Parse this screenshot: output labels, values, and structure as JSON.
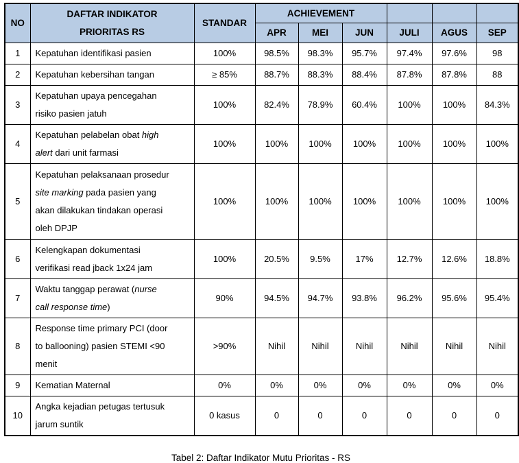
{
  "colors": {
    "header_bg": "#b8cce4",
    "border": "#000000"
  },
  "caption": "Tabel 2: Daftar Indikator Mutu Prioritas - RS",
  "table": {
    "header": {
      "no": "NO",
      "indicator_line1": "DAFTAR INDIKATOR",
      "indicator_line2": "PRIORITAS RS",
      "standar": "STANDAR",
      "achievement": "ACHIEVEMENT",
      "months": [
        "APR",
        "MEI",
        "JUN",
        "JULI",
        "AGUS",
        "SEP"
      ]
    },
    "rows": [
      {
        "no": "1",
        "indicator": [
          {
            "text": "Kepatuhan identifikasi pasien"
          }
        ],
        "standar": "100%",
        "values": [
          "98.5%",
          "98.3%",
          "95.7%",
          "97.4%",
          "97.6%",
          "98"
        ]
      },
      {
        "no": "2",
        "indicator": [
          {
            "text": "Kepatuhan kebersihan tangan"
          }
        ],
        "standar": "≥ 85%",
        "values": [
          "88.7%",
          "88.3%",
          "88.4%",
          "87.8%",
          "87.8%",
          "88"
        ]
      },
      {
        "no": "3",
        "indicator": [
          {
            "text": "Kepatuhan upaya pencegahan"
          },
          {
            "br": true
          },
          {
            "text": "risiko pasien jatuh"
          }
        ],
        "standar": "100%",
        "values": [
          "82.4%",
          "78.9%",
          "60.4%",
          "100%",
          "100%",
          "84.3%"
        ]
      },
      {
        "no": "4",
        "indicator": [
          {
            "text": "Kepatuhan pelabelan obat "
          },
          {
            "text": "high",
            "italic": true
          },
          {
            "br": true
          },
          {
            "text": "alert",
            "italic": true
          },
          {
            "text": " dari unit farmasi"
          }
        ],
        "standar": "100%",
        "values": [
          "100%",
          "100%",
          "100%",
          "100%",
          "100%",
          "100%"
        ]
      },
      {
        "no": "5",
        "indicator": [
          {
            "text": "Kepatuhan pelaksanaan prosedur"
          },
          {
            "br": true
          },
          {
            "text": "site marking",
            "italic": true
          },
          {
            "text": " pada pasien yang"
          },
          {
            "br": true
          },
          {
            "text": "akan dilakukan tindakan operasi"
          },
          {
            "br": true
          },
          {
            "text": "oleh DPJP"
          }
        ],
        "standar": "100%",
        "values": [
          "100%",
          "100%",
          "100%",
          "100%",
          "100%",
          "100%"
        ]
      },
      {
        "no": "6",
        "indicator": [
          {
            "text": "Kelengkapan dokumentasi"
          },
          {
            "br": true
          },
          {
            "text": "verifikasi read jback 1x24 jam"
          }
        ],
        "standar": "100%",
        "values": [
          "20.5%",
          "9.5%",
          "17%",
          "12.7%",
          "12.6%",
          "18.8%"
        ]
      },
      {
        "no": "7",
        "indicator": [
          {
            "text": "Waktu tanggap perawat ("
          },
          {
            "text": "nurse",
            "italic": true
          },
          {
            "br": true
          },
          {
            "text": "call response time",
            "italic": true
          },
          {
            "text": ")"
          }
        ],
        "standar": "90%",
        "values": [
          "94.5%",
          "94.7%",
          "93.8%",
          "96.2%",
          "95.6%",
          "95.4%"
        ]
      },
      {
        "no": "8",
        "indicator": [
          {
            "text": "Response time primary PCI (door"
          },
          {
            "br": true
          },
          {
            "text": "to ballooning) pasien STEMI <90"
          },
          {
            "br": true
          },
          {
            "text": "menit"
          }
        ],
        "standar": ">90%",
        "values": [
          "Nihil",
          "Nihil",
          "Nihil",
          "Nihil",
          "Nihil",
          "Nihil"
        ]
      },
      {
        "no": "9",
        "indicator": [
          {
            "text": "Kematian Maternal"
          }
        ],
        "standar": "0%",
        "values": [
          "0%",
          "0%",
          "0%",
          "0%",
          "0%",
          "0%"
        ]
      },
      {
        "no": "10",
        "indicator": [
          {
            "text": "Angka kejadian petugas tertusuk"
          },
          {
            "br": true
          },
          {
            "text": "jarum suntik"
          }
        ],
        "standar": "0 kasus",
        "values": [
          "0",
          "0",
          "0",
          "0",
          "0",
          "0"
        ]
      }
    ]
  }
}
